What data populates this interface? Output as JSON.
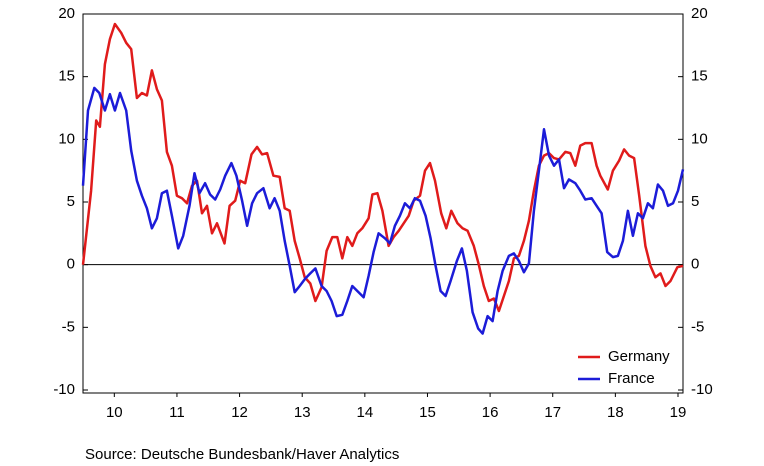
{
  "chart_data": {
    "type": "line",
    "source": "Source:  Deutsche Bundesbank/Haver Analytics",
    "xlim": [
      10,
      19.58
    ],
    "xticks": [
      {
        "value": 10.5,
        "label": "10"
      },
      {
        "value": 11.5,
        "label": "11"
      },
      {
        "value": 12.5,
        "label": "12"
      },
      {
        "value": 13.5,
        "label": "13"
      },
      {
        "value": 14.5,
        "label": "14"
      },
      {
        "value": 15.5,
        "label": "15"
      },
      {
        "value": 16.5,
        "label": "16"
      },
      {
        "value": 17.5,
        "label": "17"
      },
      {
        "value": 18.5,
        "label": "18"
      },
      {
        "value": 19.5,
        "label": "19"
      }
    ],
    "ylim": [
      -10,
      20
    ],
    "yticks": [
      -10,
      -5,
      0,
      5,
      10,
      15,
      20
    ],
    "y2lim": [
      -10,
      20
    ],
    "y2ticks": [
      -10,
      -5,
      0,
      5,
      10,
      15,
      20
    ],
    "zero_line": true,
    "legend": "lower right",
    "series": [
      {
        "name": "Germany",
        "color": "#e01b1b",
        "x": [
          10.0,
          10.13,
          10.21,
          10.27,
          10.35,
          10.43,
          10.51,
          10.61,
          10.69,
          10.77,
          10.86,
          10.94,
          11.02,
          11.1,
          11.18,
          11.26,
          11.34,
          11.42,
          11.5,
          11.58,
          11.66,
          11.74,
          11.82,
          11.9,
          11.98,
          12.06,
          12.14,
          12.26,
          12.34,
          12.43,
          12.51,
          12.59,
          12.69,
          12.78,
          12.86,
          12.94,
          13.04,
          13.14,
          13.22,
          13.3,
          13.38,
          13.46,
          13.54,
          13.63,
          13.71,
          13.81,
          13.89,
          13.98,
          14.06,
          14.14,
          14.22,
          14.3,
          14.38,
          14.46,
          14.56,
          14.62,
          14.7,
          14.78,
          14.88,
          14.96,
          15.04,
          15.12,
          15.2,
          15.28,
          15.38,
          15.46,
          15.54,
          15.62,
          15.72,
          15.8,
          15.88,
          15.98,
          16.06,
          16.14,
          16.24,
          16.32,
          16.4,
          16.48,
          16.56,
          16.64,
          16.72,
          16.8,
          16.88,
          16.96,
          17.04,
          17.12,
          17.2,
          17.28,
          17.36,
          17.44,
          17.52,
          17.6,
          17.7,
          17.78,
          17.86,
          17.94,
          18.02,
          18.12,
          18.2,
          18.26,
          18.38,
          18.46,
          18.56,
          18.64,
          18.72,
          18.8,
          18.88,
          18.98,
          19.06,
          19.14,
          19.22,
          19.3,
          19.38,
          19.49,
          19.58
        ],
        "values": [
          0,
          5.9,
          11.5,
          11,
          16,
          18,
          19.2,
          18.5,
          17.7,
          17.2,
          13.3,
          13.7,
          13.5,
          15.5,
          14,
          13.1,
          9,
          7.9,
          5.5,
          5.3,
          4.9,
          6.3,
          6.7,
          4.1,
          4.7,
          2.5,
          3.3,
          1.7,
          4.7,
          5.1,
          6.7,
          6.5,
          8.8,
          9.4,
          8.8,
          8.9,
          7.1,
          7,
          4.5,
          4.3,
          1.9,
          0.5,
          -1,
          -1.5,
          -2.9,
          -1.8,
          1.1,
          2.2,
          2.2,
          0.5,
          2.2,
          1.5,
          2.5,
          2.9,
          3.7,
          5.6,
          5.7,
          4.3,
          1.5,
          2.2,
          2.7,
          3.3,
          3.9,
          5.1,
          5.5,
          7.5,
          8.1,
          6.7,
          4.1,
          2.9,
          4.3,
          3.3,
          2.9,
          2.7,
          1.5,
          0,
          -1.7,
          -2.9,
          -2.7,
          -3.7,
          -2.5,
          -1.3,
          0.5,
          0.7,
          1.9,
          3.5,
          5.9,
          7.9,
          8.7,
          8.9,
          8.5,
          8.4,
          9,
          8.9,
          7.9,
          9.5,
          9.7,
          9.7,
          7.9,
          7.1,
          6,
          7.5,
          8.3,
          9.2,
          8.7,
          8.5,
          5.5,
          1.5,
          -0.1,
          -1,
          -0.7,
          -1.7,
          -1.3,
          -0.2,
          -0.1
        ]
      },
      {
        "name": "France",
        "color": "#1c1cd8",
        "x": [
          10.0,
          10.08,
          10.18,
          10.26,
          10.35,
          10.43,
          10.51,
          10.59,
          10.69,
          10.77,
          10.86,
          10.94,
          11.02,
          11.1,
          11.18,
          11.26,
          11.34,
          11.42,
          11.52,
          11.6,
          11.7,
          11.78,
          11.86,
          11.95,
          12.03,
          12.11,
          12.19,
          12.27,
          12.37,
          12.45,
          12.54,
          12.62,
          12.7,
          12.78,
          12.88,
          12.98,
          13.06,
          13.14,
          13.22,
          13.3,
          13.38,
          13.46,
          13.55,
          13.63,
          13.71,
          13.81,
          13.89,
          13.97,
          14.05,
          14.14,
          14.22,
          14.3,
          14.38,
          14.48,
          14.56,
          14.64,
          14.72,
          14.82,
          14.9,
          14.98,
          15.06,
          15.14,
          15.22,
          15.3,
          15.38,
          15.47,
          15.55,
          15.63,
          15.71,
          15.79,
          15.87,
          15.97,
          16.05,
          16.13,
          16.22,
          16.31,
          16.38,
          16.46,
          16.54,
          16.62,
          16.7,
          16.8,
          16.88,
          16.96,
          17.04,
          17.12,
          17.2,
          17.28,
          17.36,
          17.44,
          17.52,
          17.6,
          17.68,
          17.76,
          17.86,
          17.94,
          18.02,
          18.12,
          18.2,
          18.28,
          18.37,
          18.46,
          18.54,
          18.62,
          18.7,
          18.78,
          18.86,
          18.94,
          19.02,
          19.1,
          19.18,
          19.26,
          19.34,
          19.42,
          19.5,
          19.58
        ],
        "values": [
          6.3,
          12.3,
          14.1,
          13.7,
          12.3,
          13.6,
          12.3,
          13.7,
          12.3,
          9.1,
          6.7,
          5.5,
          4.5,
          2.9,
          3.7,
          5.7,
          5.9,
          3.9,
          1.3,
          2.3,
          4.7,
          7.3,
          5.7,
          6.5,
          5.6,
          5.2,
          6,
          7.1,
          8.1,
          7.1,
          5.1,
          3.1,
          4.9,
          5.7,
          6.1,
          4.5,
          5.3,
          4.3,
          1.9,
          -0.1,
          -2.2,
          -1.7,
          -1.1,
          -0.7,
          -0.3,
          -1.7,
          -2.1,
          -2.9,
          -4.1,
          -4,
          -2.9,
          -1.7,
          -2.1,
          -2.6,
          -0.9,
          1,
          2.5,
          2.1,
          1.7,
          3.1,
          3.9,
          4.9,
          4.5,
          5.3,
          5.1,
          3.9,
          2.1,
          -0.1,
          -2.1,
          -2.5,
          -1.3,
          0.3,
          1.3,
          -0.5,
          -3.8,
          -5.1,
          -5.5,
          -4.1,
          -4.5,
          -2.1,
          -0.5,
          0.7,
          0.9,
          0.3,
          -0.6,
          0.1,
          4.3,
          7.5,
          10.8,
          8.7,
          7.9,
          8.4,
          6.1,
          6.8,
          6.5,
          5.9,
          5.2,
          5.3,
          4.7,
          4.1,
          1,
          0.6,
          0.7,
          1.9,
          4.3,
          2.3,
          4.1,
          3.7,
          4.9,
          4.5,
          6.4,
          5.9,
          4.7,
          4.9,
          5.9,
          7.6
        ]
      }
    ]
  }
}
